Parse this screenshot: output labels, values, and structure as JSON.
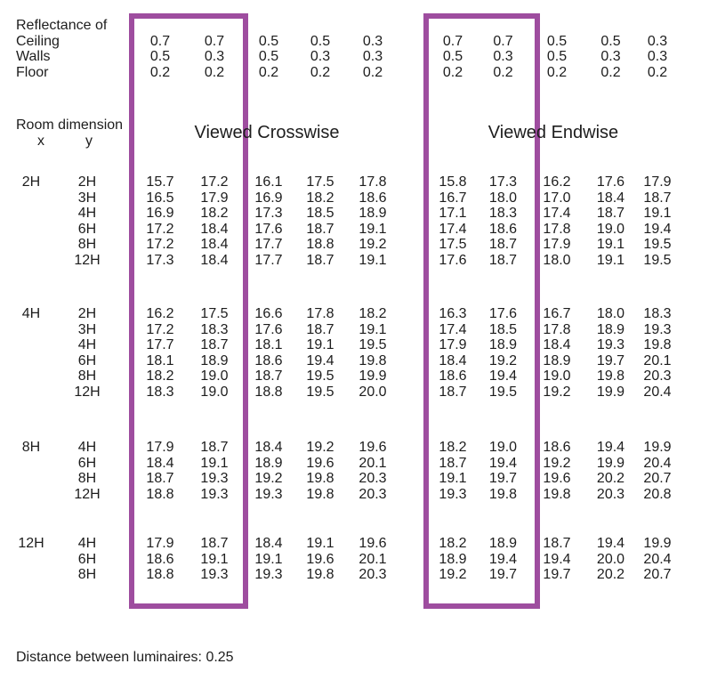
{
  "reflectance": {
    "title": "Reflectance of",
    "rows": [
      {
        "label": "Ceiling",
        "crosswise": [
          "0.7",
          "0.7",
          "0.5",
          "0.5",
          "0.3"
        ],
        "endwise": [
          "0.7",
          "0.7",
          "0.5",
          "0.5",
          "0.3"
        ]
      },
      {
        "label": "Walls",
        "crosswise": [
          "0.5",
          "0.3",
          "0.5",
          "0.3",
          "0.3"
        ],
        "endwise": [
          "0.5",
          "0.3",
          "0.5",
          "0.3",
          "0.3"
        ]
      },
      {
        "label": "Floor",
        "crosswise": [
          "0.2",
          "0.2",
          "0.2",
          "0.2",
          "0.2"
        ],
        "endwise": [
          "0.2",
          "0.2",
          "0.2",
          "0.2",
          "0.2"
        ]
      }
    ]
  },
  "room_dimension": {
    "label": "Room dimension",
    "x_header": "x",
    "y_header": "y"
  },
  "view_headers": {
    "crosswise": "Viewed Crosswise",
    "endwise": "Viewed Endwise"
  },
  "ugr_table": {
    "blocks": [
      {
        "x": "2H",
        "rows": [
          {
            "y": "2H",
            "crosswise": [
              "15.7",
              "17.2",
              "16.1",
              "17.5",
              "17.8"
            ],
            "endwise": [
              "15.8",
              "17.3",
              "16.2",
              "17.6",
              "17.9"
            ]
          },
          {
            "y": "3H",
            "crosswise": [
              "16.5",
              "17.9",
              "16.9",
              "18.2",
              "18.6"
            ],
            "endwise": [
              "16.7",
              "18.0",
              "17.0",
              "18.4",
              "18.7"
            ]
          },
          {
            "y": "4H",
            "crosswise": [
              "16.9",
              "18.2",
              "17.3",
              "18.5",
              "18.9"
            ],
            "endwise": [
              "17.1",
              "18.3",
              "17.4",
              "18.7",
              "19.1"
            ]
          },
          {
            "y": "6H",
            "crosswise": [
              "17.2",
              "18.4",
              "17.6",
              "18.7",
              "19.1"
            ],
            "endwise": [
              "17.4",
              "18.6",
              "17.8",
              "19.0",
              "19.4"
            ]
          },
          {
            "y": "8H",
            "crosswise": [
              "17.2",
              "18.4",
              "17.7",
              "18.8",
              "19.2"
            ],
            "endwise": [
              "17.5",
              "18.7",
              "17.9",
              "19.1",
              "19.5"
            ]
          },
          {
            "y": "12H",
            "crosswise": [
              "17.3",
              "18.4",
              "17.7",
              "18.7",
              "19.1"
            ],
            "endwise": [
              "17.6",
              "18.7",
              "18.0",
              "19.1",
              "19.5"
            ]
          }
        ]
      },
      {
        "x": "4H",
        "rows": [
          {
            "y": "2H",
            "crosswise": [
              "16.2",
              "17.5",
              "16.6",
              "17.8",
              "18.2"
            ],
            "endwise": [
              "16.3",
              "17.6",
              "16.7",
              "18.0",
              "18.3"
            ]
          },
          {
            "y": "3H",
            "crosswise": [
              "17.2",
              "18.3",
              "17.6",
              "18.7",
              "19.1"
            ],
            "endwise": [
              "17.4",
              "18.5",
              "17.8",
              "18.9",
              "19.3"
            ]
          },
          {
            "y": "4H",
            "crosswise": [
              "17.7",
              "18.7",
              "18.1",
              "19.1",
              "19.5"
            ],
            "endwise": [
              "17.9",
              "18.9",
              "18.4",
              "19.3",
              "19.8"
            ]
          },
          {
            "y": "6H",
            "crosswise": [
              "18.1",
              "18.9",
              "18.6",
              "19.4",
              "19.8"
            ],
            "endwise": [
              "18.4",
              "19.2",
              "18.9",
              "19.7",
              "20.1"
            ]
          },
          {
            "y": "8H",
            "crosswise": [
              "18.2",
              "19.0",
              "18.7",
              "19.5",
              "19.9"
            ],
            "endwise": [
              "18.6",
              "19.4",
              "19.0",
              "19.8",
              "20.3"
            ]
          },
          {
            "y": "12H",
            "crosswise": [
              "18.3",
              "19.0",
              "18.8",
              "19.5",
              "20.0"
            ],
            "endwise": [
              "18.7",
              "19.5",
              "19.2",
              "19.9",
              "20.4"
            ]
          }
        ]
      },
      {
        "x": "8H",
        "rows": [
          {
            "y": "4H",
            "crosswise": [
              "17.9",
              "18.7",
              "18.4",
              "19.2",
              "19.6"
            ],
            "endwise": [
              "18.2",
              "19.0",
              "18.6",
              "19.4",
              "19.9"
            ]
          },
          {
            "y": "6H",
            "crosswise": [
              "18.4",
              "19.1",
              "18.9",
              "19.6",
              "20.1"
            ],
            "endwise": [
              "18.7",
              "19.4",
              "19.2",
              "19.9",
              "20.4"
            ]
          },
          {
            "y": "8H",
            "crosswise": [
              "18.7",
              "19.3",
              "19.2",
              "19.8",
              "20.3"
            ],
            "endwise": [
              "19.1",
              "19.7",
              "19.6",
              "20.2",
              "20.7"
            ]
          },
          {
            "y": "12H",
            "crosswise": [
              "18.8",
              "19.3",
              "19.3",
              "19.8",
              "20.3"
            ],
            "endwise": [
              "19.3",
              "19.8",
              "19.8",
              "20.3",
              "20.8"
            ]
          }
        ]
      },
      {
        "x": "12H",
        "rows": [
          {
            "y": "4H",
            "crosswise": [
              "17.9",
              "18.7",
              "18.4",
              "19.1",
              "19.6"
            ],
            "endwise": [
              "18.2",
              "18.9",
              "18.7",
              "19.4",
              "19.9"
            ]
          },
          {
            "y": "6H",
            "crosswise": [
              "18.6",
              "19.1",
              "19.1",
              "19.6",
              "20.1"
            ],
            "endwise": [
              "18.9",
              "19.4",
              "19.4",
              "20.0",
              "20.4"
            ]
          },
          {
            "y": "8H",
            "crosswise": [
              "18.8",
              "19.3",
              "19.3",
              "19.8",
              "20.3"
            ],
            "endwise": [
              "19.2",
              "19.7",
              "19.7",
              "20.2",
              "20.7"
            ]
          }
        ]
      }
    ]
  },
  "footer": {
    "text": "Distance between luminaires: 0.25"
  },
  "colors": {
    "highlight_border": "#9E4D9F",
    "text": "#1D1D1D",
    "background": "#FFFFFF"
  }
}
